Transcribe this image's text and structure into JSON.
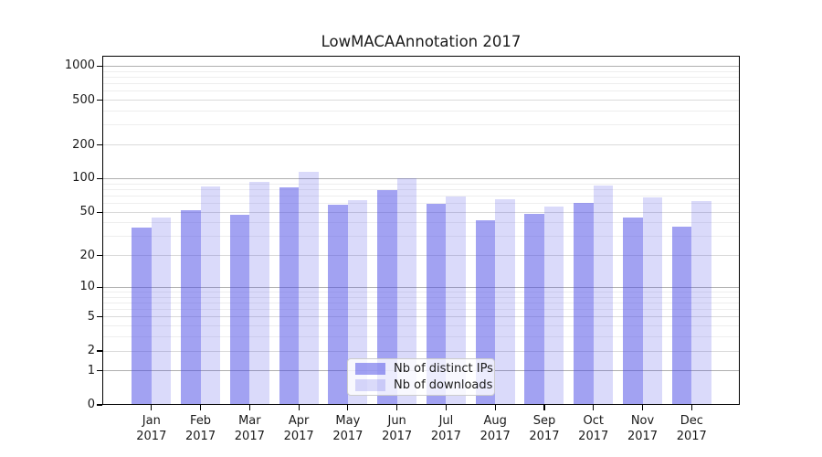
{
  "title": "LowMACAAnnotation 2017",
  "colors": {
    "bar_base": "#4646e6",
    "ips_bar_alpha": 0.5,
    "downloads_bar_alpha": 0.2,
    "ips_bar_on_white": "#a2a2f2",
    "downloads_bar_on_white": "#dadafa",
    "grid_major": "#b0b0b0",
    "grid_mid": "#dadada",
    "grid_minor": "#eeeeee",
    "spine": "#000000",
    "text": "#1a1a1a"
  },
  "legend": {
    "items": [
      {
        "label": "Nb of distinct IPs",
        "swatch": "ips"
      },
      {
        "label": "Nb of downloads",
        "swatch": "downloads"
      }
    ]
  },
  "y_axis": {
    "ticks": [
      {
        "label": "0",
        "value": 0
      },
      {
        "label": "1",
        "value": 1
      },
      {
        "label": "2",
        "value": 2
      },
      {
        "label": "5",
        "value": 5
      },
      {
        "label": "10",
        "value": 10
      },
      {
        "label": "20",
        "value": 20
      },
      {
        "label": "50",
        "value": 50
      },
      {
        "label": "100",
        "value": 100
      },
      {
        "label": "200",
        "value": 200
      },
      {
        "label": "500",
        "value": 500
      },
      {
        "label": "1000",
        "value": 1000
      }
    ]
  },
  "x_axis": {
    "labels": [
      {
        "month": "Jan",
        "year": "2017"
      },
      {
        "month": "Feb",
        "year": "2017"
      },
      {
        "month": "Mar",
        "year": "2017"
      },
      {
        "month": "Apr",
        "year": "2017"
      },
      {
        "month": "May",
        "year": "2017"
      },
      {
        "month": "Jun",
        "year": "2017"
      },
      {
        "month": "Jul",
        "year": "2017"
      },
      {
        "month": "Aug",
        "year": "2017"
      },
      {
        "month": "Sep",
        "year": "2017"
      },
      {
        "month": "Oct",
        "year": "2017"
      },
      {
        "month": "Nov",
        "year": "2017"
      },
      {
        "month": "Dec",
        "year": "2017"
      }
    ]
  },
  "chart_data": {
    "type": "bar",
    "title": "LowMACAAnnotation 2017",
    "categories": [
      "Jan 2017",
      "Feb 2017",
      "Mar 2017",
      "Apr 2017",
      "May 2017",
      "Jun 2017",
      "Jul 2017",
      "Aug 2017",
      "Sep 2017",
      "Oct 2017",
      "Nov 2017",
      "Dec 2017"
    ],
    "series": [
      {
        "name": "Nb of distinct IPs",
        "values": [
          36,
          52,
          47,
          83,
          58,
          79,
          60,
          42,
          48,
          61,
          45,
          37
        ]
      },
      {
        "name": "Nb of downloads",
        "values": [
          45,
          85,
          93,
          116,
          64,
          100,
          69,
          65,
          56,
          87,
          68,
          63
        ]
      }
    ],
    "xlabel": "",
    "ylabel": "",
    "yscale": "log1p",
    "ytick_values": [
      0,
      1,
      2,
      5,
      10,
      20,
      50,
      100,
      200,
      500,
      1000
    ],
    "ylim": [
      0,
      1180
    ],
    "grid": true,
    "legend_position": "lower center"
  }
}
